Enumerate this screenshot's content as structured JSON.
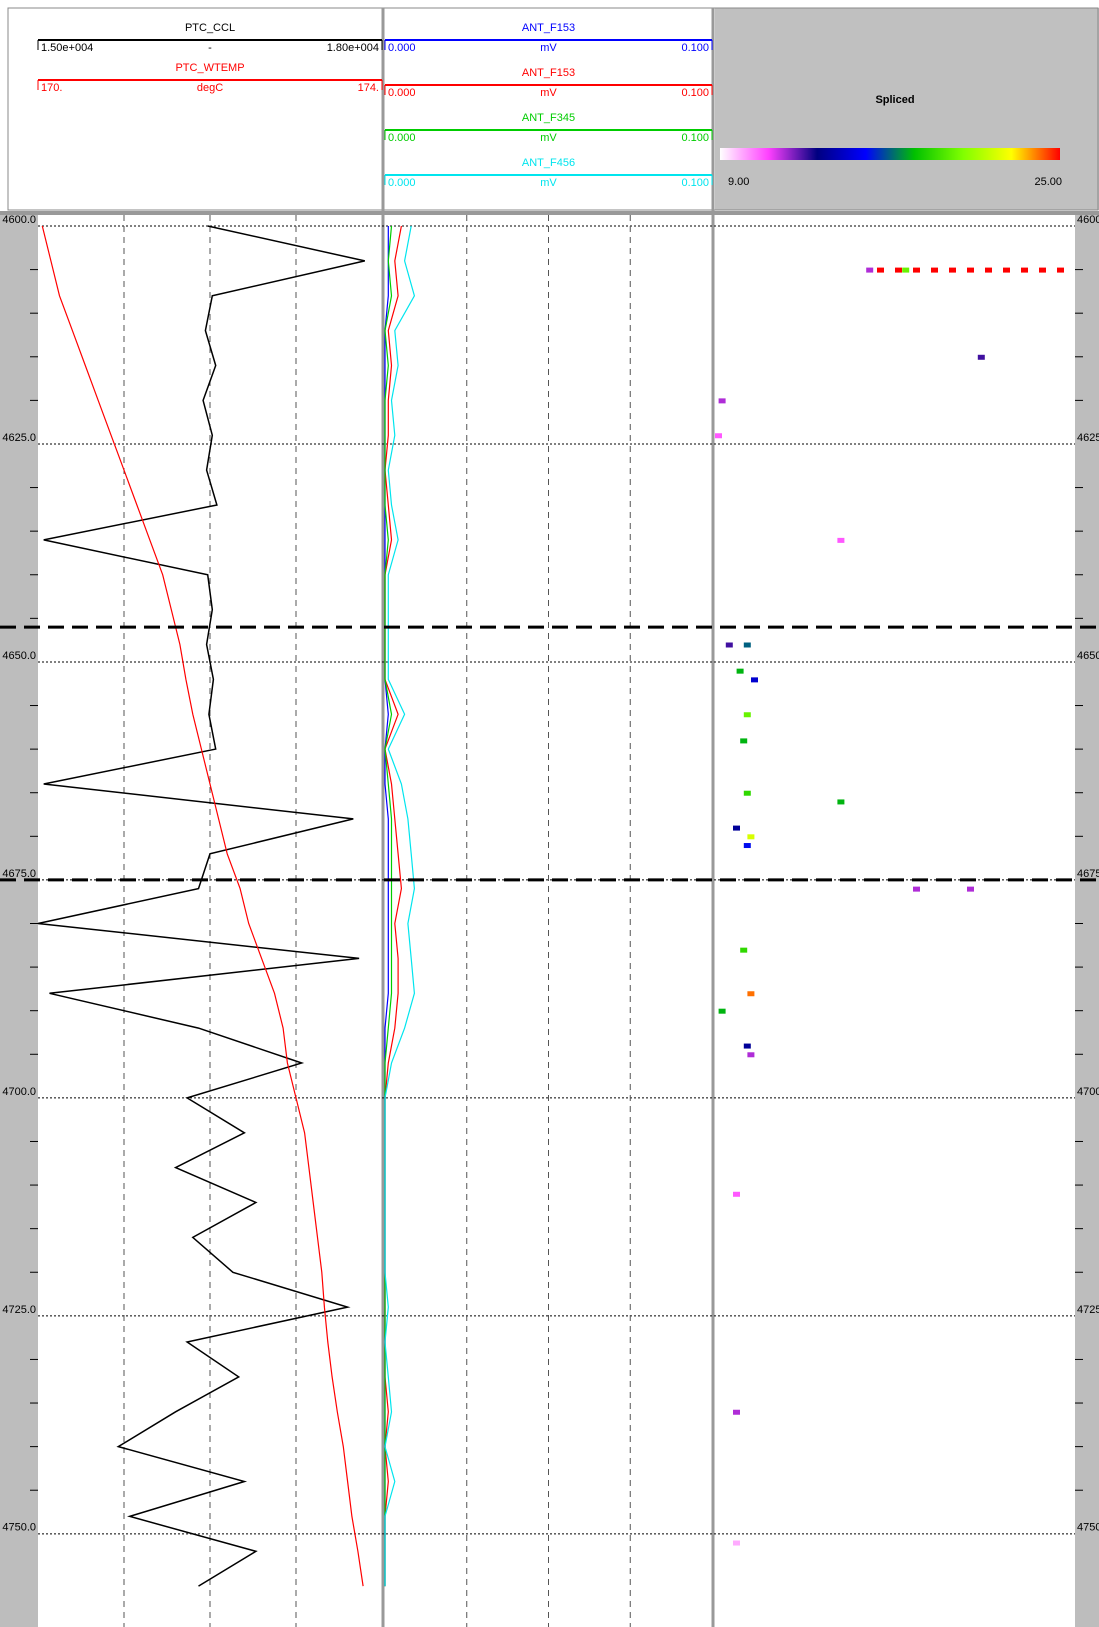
{
  "chart_data": {
    "type": "well-log",
    "ylim": [
      4600,
      4760
    ],
    "yticks": [
      {
        "value": 4600,
        "label": "4600.0"
      },
      {
        "value": 4625,
        "label": "4625.0"
      },
      {
        "value": 4650,
        "label": "4650.0"
      },
      {
        "value": 4675,
        "label": "4675.0"
      },
      {
        "value": 4700,
        "label": "4700.0"
      },
      {
        "value": 4725,
        "label": "4725.0"
      },
      {
        "value": 4750,
        "label": "4750.0"
      }
    ],
    "markers": [
      4646,
      4675
    ],
    "depth": [
      4600,
      4604,
      4608,
      4612,
      4616,
      4620,
      4624,
      4628,
      4632,
      4636,
      4640,
      4644,
      4648,
      4652,
      4656,
      4660,
      4664,
      4668,
      4672,
      4676,
      4680,
      4684,
      4688,
      4692,
      4696,
      4700,
      4704,
      4708,
      4712,
      4716,
      4720,
      4724,
      4728,
      4732,
      4736,
      4740,
      4744,
      4748,
      4752,
      4756
    ],
    "tracks": [
      {
        "grid": true,
        "series": [
          {
            "name": "PTC_CCL",
            "unit": "-",
            "color": "#000000",
            "xlim": [
              {
                "value": 15000,
                "label": "1.50e+004"
              },
              {
                "value": 18000,
                "label": "1.80e+004"
              }
            ],
            "values": [
              16480,
              17850,
              16520,
              16460,
              16550,
              16440,
              16520,
              16470,
              16560,
              15050,
              16480,
              16520,
              16470,
              16530,
              16490,
              16550,
              15050,
              17750,
              16500,
              16400,
              15000,
              17800,
              15100,
              16400,
              17300,
              16300,
              16800,
              16200,
              16900,
              16350,
              16700,
              17700,
              16300,
              16750,
              16200,
              15700,
              16800,
              15800,
              16900,
              16400
            ]
          },
          {
            "name": "PTC_WTEMP",
            "unit": "degC",
            "color": "#ff0000",
            "xlim": [
              {
                "value": 170,
                "label": "170."
              },
              {
                "value": 174,
                "label": "174."
              }
            ],
            "values": [
              170.05,
              170.15,
              170.25,
              170.4,
              170.55,
              170.7,
              170.85,
              171.0,
              171.15,
              171.3,
              171.45,
              171.55,
              171.65,
              171.72,
              171.8,
              171.9,
              172.0,
              172.1,
              172.2,
              172.35,
              172.45,
              172.6,
              172.75,
              172.85,
              172.9,
              173.0,
              173.1,
              173.15,
              173.2,
              173.25,
              173.3,
              173.33,
              173.37,
              173.42,
              173.48,
              173.55,
              173.6,
              173.65,
              173.72,
              173.78
            ]
          }
        ]
      },
      {
        "grid": true,
        "series": [
          {
            "name": "ANT_F153",
            "unit": "mV",
            "color": "#0000ff",
            "xlim": [
              {
                "value": 0,
                "label": "0.000"
              },
              {
                "value": 0.1,
                "label": "0.100"
              }
            ],
            "values": [
              0.001,
              0.001,
              0.001,
              0,
              0,
              0,
              0,
              0,
              0,
              0,
              0,
              0,
              0,
              0,
              0.001,
              0,
              0,
              0.001,
              0.001,
              0.001,
              0.001,
              0.001,
              0.001,
              0,
              0,
              0,
              0,
              0,
              0,
              0,
              0,
              0,
              0,
              0,
              0,
              0,
              0,
              0,
              0,
              0
            ]
          },
          {
            "name": "ANT_F153",
            "unit": "mV",
            "color": "#ff0000",
            "xlim": [
              {
                "value": 0,
                "label": "0.000"
              },
              {
                "value": 0.1,
                "label": "0.100"
              }
            ],
            "values": [
              0.005,
              0.003,
              0.004,
              0.001,
              0.002,
              0.001,
              0.001,
              0,
              0.001,
              0.002,
              0,
              0,
              0,
              0,
              0.004,
              0,
              0.002,
              0.003,
              0.004,
              0.005,
              0.003,
              0.004,
              0.004,
              0.003,
              0.001,
              0,
              0,
              0,
              0,
              0,
              0,
              0,
              0,
              0,
              0.001,
              0,
              0.001,
              0,
              0,
              0
            ]
          },
          {
            "name": "ANT_F345",
            "unit": "mV",
            "color": "#00cc00",
            "xlim": [
              {
                "value": 0,
                "label": "0.000"
              },
              {
                "value": 0.1,
                "label": "0.100"
              }
            ],
            "values": [
              0.002,
              0.001,
              0.002,
              0,
              0.001,
              0,
              0,
              0,
              0,
              0.001,
              0,
              0,
              0,
              0,
              0.002,
              0,
              0.001,
              0.002,
              0.002,
              0.002,
              0.002,
              0.002,
              0.002,
              0.001,
              0,
              0,
              0,
              0,
              0,
              0,
              0,
              0,
              0,
              0,
              0,
              0,
              0,
              0,
              0,
              0
            ]
          },
          {
            "name": "ANT_F456",
            "unit": "mV",
            "color": "#00e5ee",
            "xlim": [
              {
                "value": 0,
                "label": "0.000"
              },
              {
                "value": 0.1,
                "label": "0.100"
              }
            ],
            "values": [
              0.008,
              0.006,
              0.009,
              0.003,
              0.004,
              0.002,
              0.003,
              0.001,
              0.002,
              0.004,
              0.001,
              0.001,
              0.001,
              0.001,
              0.006,
              0.001,
              0.005,
              0.007,
              0.008,
              0.009,
              0.007,
              0.008,
              0.009,
              0.006,
              0.002,
              0,
              0,
              0,
              0,
              0,
              0,
              0.001,
              0,
              0.001,
              0.002,
              0,
              0.003,
              0,
              0,
              0
            ]
          }
        ]
      },
      {
        "type": "image",
        "title": "Spliced",
        "clim": [
          {
            "value": 9,
            "label": "9.00"
          },
          {
            "value": 25,
            "label": "25.00"
          }
        ],
        "colormap": [
          "#ffffff",
          "#ff40ff",
          "#000080",
          "#0000ff",
          "#00c000",
          "#80ff00",
          "#ffff00",
          "#ff0000"
        ],
        "xlim": [
          0,
          100
        ],
        "x": [
          45,
          50,
          55,
          60,
          65,
          70,
          75,
          80,
          85,
          90,
          95,
          52,
          42,
          73,
          1,
          0,
          34,
          3,
          8,
          6,
          10,
          8,
          7,
          8,
          9,
          8,
          34,
          5,
          55,
          70,
          7,
          9,
          1,
          8,
          9,
          5,
          5,
          5
        ],
        "depth": [
          4605,
          4605,
          4605,
          4605,
          4605,
          4605,
          4605,
          4605,
          4605,
          4605,
          4605,
          4605,
          4605,
          4615,
          4620,
          4624,
          4636,
          4648,
          4648,
          4651,
          4652,
          4656,
          4659,
          4665,
          4670,
          4671,
          4666,
          4669,
          4676,
          4676,
          4683,
          4688,
          4690,
          4694,
          4695,
          4711,
          4736,
          4751
        ],
        "values": [
          25,
          25,
          25,
          25,
          25,
          25,
          25,
          25,
          25,
          25,
          25,
          20,
          12,
          13,
          12,
          11,
          11,
          13,
          17,
          18,
          15,
          20,
          18,
          19,
          22,
          16,
          18,
          14,
          12,
          12,
          19,
          24,
          18,
          14,
          12,
          11,
          12,
          10
        ]
      }
    ]
  }
}
